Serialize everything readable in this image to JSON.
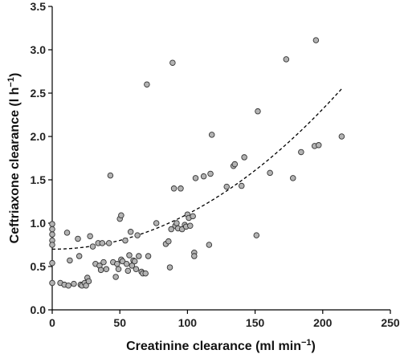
{
  "chart_data": {
    "type": "scatter",
    "title": "",
    "xlabel": "Creatinine clearance (ml min",
    "xlabel_sup": "−1",
    "xlabel_tail": ")",
    "ylabel": "Ceftriaxone clearance (l h",
    "ylabel_sup": "−1",
    "ylabel_tail": ")",
    "xlim": [
      0,
      250
    ],
    "ylim": [
      0,
      3.5
    ],
    "xticks": [
      0,
      50,
      100,
      150,
      200,
      250
    ],
    "yticks": [
      0.0,
      0.5,
      1.0,
      1.5,
      2.0,
      2.5,
      3.0,
      3.5
    ],
    "ytick_labels": [
      "0.0",
      "0.5",
      "1.0",
      "1.5",
      "2.0",
      "2.5",
      "3.0",
      "3.5"
    ],
    "xtick_labels": [
      "0",
      "50",
      "100",
      "150",
      "200",
      "250"
    ],
    "grid": false,
    "marker_color": "#b3b3b3",
    "marker_edge": "#333333",
    "fit_curve": {
      "style": "dashed",
      "coefficients": [
        0.7,
        0.0,
        4.04e-05
      ],
      "x_range": [
        0,
        215
      ]
    },
    "points": [
      {
        "x": 0,
        "y": 0.99
      },
      {
        "x": 0,
        "y": 0.93
      },
      {
        "x": 0,
        "y": 0.87
      },
      {
        "x": 0,
        "y": 0.8
      },
      {
        "x": 0,
        "y": 0.75
      },
      {
        "x": 0,
        "y": 0.54
      },
      {
        "x": 0,
        "y": 0.31
      },
      {
        "x": 6,
        "y": 0.31
      },
      {
        "x": 9,
        "y": 0.29
      },
      {
        "x": 11,
        "y": 0.89
      },
      {
        "x": 12,
        "y": 0.28
      },
      {
        "x": 13,
        "y": 0.57
      },
      {
        "x": 16,
        "y": 0.3
      },
      {
        "x": 19,
        "y": 0.82
      },
      {
        "x": 20,
        "y": 0.62
      },
      {
        "x": 21,
        "y": 0.29
      },
      {
        "x": 22,
        "y": 0.28
      },
      {
        "x": 24,
        "y": 0.31
      },
      {
        "x": 25,
        "y": 0.28
      },
      {
        "x": 26,
        "y": 0.37
      },
      {
        "x": 27,
        "y": 0.33
      },
      {
        "x": 28,
        "y": 0.85
      },
      {
        "x": 30,
        "y": 0.73
      },
      {
        "x": 32,
        "y": 0.53
      },
      {
        "x": 34,
        "y": 0.77
      },
      {
        "x": 35,
        "y": 0.51
      },
      {
        "x": 36,
        "y": 0.46
      },
      {
        "x": 37,
        "y": 0.77
      },
      {
        "x": 38,
        "y": 0.55
      },
      {
        "x": 40,
        "y": 0.47
      },
      {
        "x": 42,
        "y": 0.77
      },
      {
        "x": 43,
        "y": 1.55
      },
      {
        "x": 45,
        "y": 0.55
      },
      {
        "x": 47,
        "y": 0.38
      },
      {
        "x": 48,
        "y": 0.53
      },
      {
        "x": 49,
        "y": 0.47
      },
      {
        "x": 50,
        "y": 1.05
      },
      {
        "x": 51,
        "y": 1.09
      },
      {
        "x": 51,
        "y": 0.58
      },
      {
        "x": 52,
        "y": 0.56
      },
      {
        "x": 54,
        "y": 0.8
      },
      {
        "x": 55,
        "y": 0.53
      },
      {
        "x": 56,
        "y": 0.45
      },
      {
        "x": 57,
        "y": 0.63
      },
      {
        "x": 58,
        "y": 0.9
      },
      {
        "x": 59,
        "y": 0.51
      },
      {
        "x": 60,
        "y": 0.57
      },
      {
        "x": 61,
        "y": 0.56
      },
      {
        "x": 62,
        "y": 0.47
      },
      {
        "x": 63,
        "y": 0.86
      },
      {
        "x": 64,
        "y": 0.62
      },
      {
        "x": 66,
        "y": 0.44
      },
      {
        "x": 67,
        "y": 0.42
      },
      {
        "x": 69,
        "y": 0.42
      },
      {
        "x": 70,
        "y": 2.6
      },
      {
        "x": 71,
        "y": 0.62
      },
      {
        "x": 77,
        "y": 1.0
      },
      {
        "x": 84,
        "y": 0.76
      },
      {
        "x": 86,
        "y": 0.79
      },
      {
        "x": 87,
        "y": 0.49
      },
      {
        "x": 88,
        "y": 0.93
      },
      {
        "x": 89,
        "y": 2.85
      },
      {
        "x": 90,
        "y": 1.4
      },
      {
        "x": 91,
        "y": 0.97
      },
      {
        "x": 92,
        "y": 1.0
      },
      {
        "x": 93,
        "y": 0.94
      },
      {
        "x": 95,
        "y": 1.4
      },
      {
        "x": 96,
        "y": 0.93
      },
      {
        "x": 98,
        "y": 0.98
      },
      {
        "x": 99,
        "y": 0.96
      },
      {
        "x": 100,
        "y": 1.1
      },
      {
        "x": 101,
        "y": 1.06
      },
      {
        "x": 102,
        "y": 0.97
      },
      {
        "x": 104,
        "y": 1.08
      },
      {
        "x": 105,
        "y": 0.66
      },
      {
        "x": 106,
        "y": 1.52
      },
      {
        "x": 105,
        "y": 0.62
      },
      {
        "x": 112,
        "y": 1.54
      },
      {
        "x": 116,
        "y": 0.75
      },
      {
        "x": 117,
        "y": 1.57
      },
      {
        "x": 118,
        "y": 2.02
      },
      {
        "x": 129,
        "y": 1.42
      },
      {
        "x": 134,
        "y": 1.66
      },
      {
        "x": 135,
        "y": 1.68
      },
      {
        "x": 140,
        "y": 1.43
      },
      {
        "x": 142,
        "y": 1.76
      },
      {
        "x": 151,
        "y": 0.86
      },
      {
        "x": 152,
        "y": 2.29
      },
      {
        "x": 161,
        "y": 1.58
      },
      {
        "x": 173,
        "y": 2.89
      },
      {
        "x": 178,
        "y": 1.52
      },
      {
        "x": 184,
        "y": 1.82
      },
      {
        "x": 194,
        "y": 1.89
      },
      {
        "x": 195,
        "y": 3.11
      },
      {
        "x": 197,
        "y": 1.9
      },
      {
        "x": 214,
        "y": 2.0
      }
    ]
  }
}
